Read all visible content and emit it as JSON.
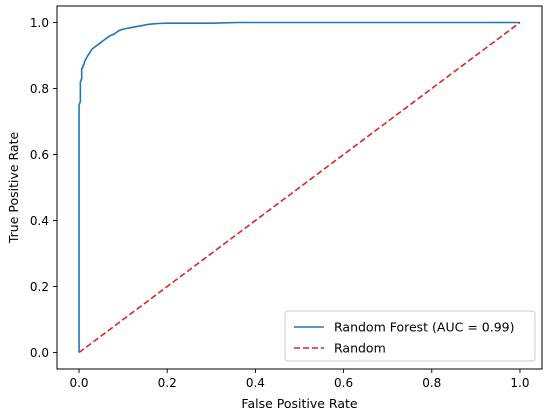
{
  "chart_data": {
    "type": "line",
    "title": "",
    "xlabel": "False Positive Rate",
    "ylabel": "True Positive Rate",
    "xlim": [
      -0.05,
      1.05
    ],
    "ylim": [
      -0.05,
      1.05
    ],
    "xticks": [
      "0.0",
      "0.2",
      "0.4",
      "0.6",
      "0.8",
      "1.0"
    ],
    "yticks": [
      "0.0",
      "0.2",
      "0.4",
      "0.6",
      "0.8",
      "1.0"
    ],
    "grid": false,
    "legend": "lower-right",
    "series": [
      {
        "name": "Random Forest (AUC = 0.99)",
        "color": "#1f77b4",
        "style": "solid",
        "x": [
          0,
          0,
          0.003,
          0.003,
          0.006,
          0.006,
          0.009,
          0.009,
          0.012,
          0.012,
          0.016,
          0.02,
          0.025,
          0.03,
          0.035,
          0.04,
          0.045,
          0.05,
          0.055,
          0.06,
          0.07,
          0.08,
          0.09,
          0.1,
          0.12,
          0.14,
          0.16,
          0.18,
          0.2,
          0.25,
          0.3,
          0.36,
          0.4,
          0.5,
          0.6,
          0.7,
          0.8,
          0.9,
          1.0
        ],
        "y": [
          0,
          0.75,
          0.76,
          0.82,
          0.83,
          0.86,
          0.865,
          0.87,
          0.875,
          0.88,
          0.89,
          0.9,
          0.91,
          0.92,
          0.925,
          0.93,
          0.935,
          0.94,
          0.945,
          0.95,
          0.96,
          0.965,
          0.975,
          0.98,
          0.985,
          0.99,
          0.995,
          0.997,
          0.998,
          0.998,
          0.998,
          1.0,
          1.0,
          1.0,
          1.0,
          1.0,
          1.0,
          1.0,
          1.0
        ]
      },
      {
        "name": "Random",
        "color": "#d62728",
        "style": "dashed",
        "x": [
          0,
          1
        ],
        "y": [
          0,
          1
        ]
      }
    ]
  }
}
